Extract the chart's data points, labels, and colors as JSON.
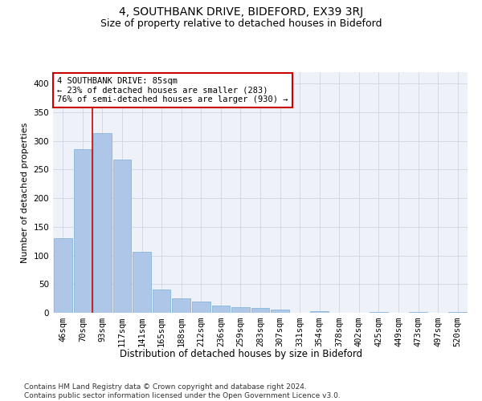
{
  "title": "4, SOUTHBANK DRIVE, BIDEFORD, EX39 3RJ",
  "subtitle": "Size of property relative to detached houses in Bideford",
  "xlabel": "Distribution of detached houses by size in Bideford",
  "ylabel": "Number of detached properties",
  "categories": [
    "46sqm",
    "70sqm",
    "93sqm",
    "117sqm",
    "141sqm",
    "165sqm",
    "188sqm",
    "212sqm",
    "236sqm",
    "259sqm",
    "283sqm",
    "307sqm",
    "331sqm",
    "354sqm",
    "378sqm",
    "402sqm",
    "425sqm",
    "449sqm",
    "473sqm",
    "497sqm",
    "520sqm"
  ],
  "values": [
    130,
    285,
    313,
    267,
    107,
    40,
    25,
    20,
    13,
    10,
    9,
    5,
    0,
    3,
    0,
    0,
    2,
    0,
    2,
    0,
    2
  ],
  "bar_color": "#aec6e8",
  "bar_edge_color": "#7aafd4",
  "vline_x": 1.5,
  "vline_color": "#cc0000",
  "annotation_text": "4 SOUTHBANK DRIVE: 85sqm\n← 23% of detached houses are smaller (283)\n76% of semi-detached houses are larger (930) →",
  "annotation_box_color": "#ffffff",
  "annotation_box_edge": "#cc0000",
  "ylim": [
    0,
    420
  ],
  "yticks": [
    0,
    50,
    100,
    150,
    200,
    250,
    300,
    350,
    400
  ],
  "bg_color": "#eef2f8",
  "footer": "Contains HM Land Registry data © Crown copyright and database right 2024.\nContains public sector information licensed under the Open Government Licence v3.0.",
  "title_fontsize": 10,
  "subtitle_fontsize": 9,
  "xlabel_fontsize": 8.5,
  "ylabel_fontsize": 8,
  "tick_fontsize": 7.5,
  "annotation_fontsize": 7.5,
  "footer_fontsize": 6.5
}
